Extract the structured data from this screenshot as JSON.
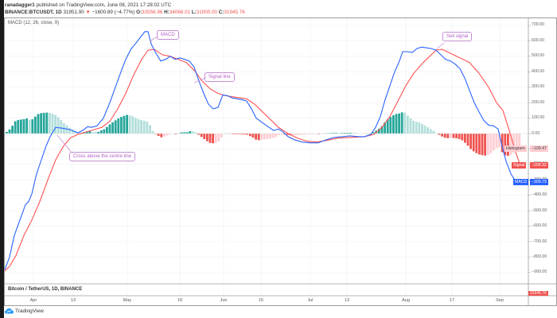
{
  "header": {
    "author": "ranadagger1",
    "published_text": "published on TradingView.com, June 08, 2021 17:28:02 UTC",
    "symbol": "BINANCE:BTCUSDT, 1D",
    "last_price": "31951.90",
    "change_arrow": "▼",
    "change": "−1600.89 (−4.77%)",
    "o_label": "O:",
    "o_value": "33556.96",
    "h_label": "H:",
    "h_value": "34068.01",
    "l_label": "L:",
    "l_value": "31000.00",
    "c_label": "C:",
    "c_value": "31945.76"
  },
  "indicator": {
    "title": "MACD (12, 26, close, 9)"
  },
  "price_pane": {
    "label": "Bitcoin / TetherUS, 1D, BINANCE",
    "price_badge": "31945.76"
  },
  "annotations": {
    "macd": "MACD",
    "signal_line": "Signal line",
    "cross": "Cross above the centre line",
    "sell_signal": "Sell signal"
  },
  "badges": {
    "histogram_label": "Histogram",
    "histogram_value": "−100.47",
    "signal_label": "Signal",
    "signal_value": "−209.32",
    "macd_label": "MACD",
    "macd_value": "−309.79"
  },
  "branding": {
    "logo_text": "TradingView"
  },
  "colors": {
    "macd": "#2962ff",
    "signal": "#ff5252",
    "hist_pos_strong": "#26a69a",
    "hist_pos_weak": "#b2dfdb",
    "hist_neg_strong": "#ef5350",
    "hist_neg_weak": "#ffcdd2",
    "annotation": "#b45fc8"
  },
  "chart_data": {
    "type": "line",
    "title": "MACD (12, 26, close, 9)",
    "xlabel": "",
    "ylabel": "",
    "x_ticks": [
      "Apr",
      "13",
      "May",
      "18",
      "Jun",
      "15",
      "Jul",
      "13",
      "Aug",
      "17",
      "Sep"
    ],
    "y_ticks": [
      "700.00",
      "600.00",
      "500.00",
      "400.00",
      "300.00",
      "200.00",
      "100.00",
      "0.00",
      "-100.00",
      "-200.00",
      "-300.00",
      "-400.00",
      "-500.00",
      "-600.00",
      "-700.00",
      "-800.00",
      "-900.00"
    ],
    "ylim": [
      -950,
      720
    ],
    "grid": true,
    "legend": [
      "MACD",
      "Signal",
      "Histogram"
    ],
    "series": [
      {
        "name": "MACD",
        "color": "#2962ff",
        "points": [
          [
            6,
            -880
          ],
          [
            12,
            -800
          ],
          [
            18,
            -660
          ],
          [
            25,
            -560
          ],
          [
            32,
            -460
          ],
          [
            36,
            -440
          ],
          [
            40,
            -390
          ],
          [
            46,
            -260
          ],
          [
            52,
            -170
          ],
          [
            58,
            -80
          ],
          [
            63,
            -20
          ],
          [
            70,
            40
          ],
          [
            78,
            35
          ],
          [
            88,
            25
          ],
          [
            98,
            5
          ],
          [
            104,
            20
          ],
          [
            110,
            45
          ],
          [
            115,
            40
          ],
          [
            122,
            50
          ],
          [
            130,
            100
          ],
          [
            138,
            200
          ],
          [
            145,
            300
          ],
          [
            152,
            400
          ],
          [
            158,
            480
          ],
          [
            165,
            550
          ],
          [
            170,
            580
          ],
          [
            176,
            620
          ],
          [
            182,
            660
          ],
          [
            186,
            660
          ],
          [
            190,
            580
          ],
          [
            196,
            520
          ],
          [
            202,
            470
          ],
          [
            208,
            480
          ],
          [
            214,
            500
          ],
          [
            220,
            480
          ],
          [
            226,
            490
          ],
          [
            232,
            480
          ],
          [
            238,
            470
          ],
          [
            244,
            430
          ],
          [
            250,
            340
          ],
          [
            256,
            260
          ],
          [
            262,
            190
          ],
          [
            268,
            160
          ],
          [
            274,
            170
          ],
          [
            280,
            250
          ],
          [
            286,
            245
          ],
          [
            292,
            230
          ],
          [
            298,
            225
          ],
          [
            304,
            220
          ],
          [
            310,
            210
          ],
          [
            316,
            160
          ],
          [
            322,
            100
          ],
          [
            330,
            70
          ],
          [
            338,
            40
          ],
          [
            344,
            20
          ],
          [
            350,
            30
          ],
          [
            356,
            10
          ],
          [
            362,
            -20
          ],
          [
            370,
            -40
          ],
          [
            380,
            -55
          ],
          [
            390,
            -60
          ],
          [
            400,
            -60
          ],
          [
            410,
            -40
          ],
          [
            420,
            -25
          ],
          [
            430,
            -20
          ],
          [
            440,
            -15
          ],
          [
            450,
            -20
          ],
          [
            458,
            -20
          ],
          [
            466,
            -5
          ],
          [
            472,
            40
          ],
          [
            478,
            110
          ],
          [
            484,
            220
          ],
          [
            490,
            310
          ],
          [
            496,
            400
          ],
          [
            502,
            470
          ],
          [
            506,
            530
          ],
          [
            512,
            530
          ],
          [
            518,
            525
          ],
          [
            524,
            550
          ],
          [
            530,
            560
          ],
          [
            536,
            555
          ],
          [
            542,
            550
          ],
          [
            548,
            540
          ],
          [
            554,
            510
          ],
          [
            560,
            480
          ],
          [
            566,
            470
          ],
          [
            572,
            450
          ],
          [
            578,
            420
          ],
          [
            584,
            360
          ],
          [
            590,
            280
          ],
          [
            596,
            200
          ],
          [
            602,
            140
          ],
          [
            608,
            85
          ],
          [
            614,
            55
          ],
          [
            620,
            50
          ],
          [
            626,
            30
          ],
          [
            630,
            -60
          ],
          [
            636,
            -180
          ],
          [
            642,
            -260
          ],
          [
            648,
            -310
          ]
        ]
      },
      {
        "name": "Signal",
        "color": "#ff5252",
        "points": [
          [
            6,
            -890
          ],
          [
            12,
            -860
          ],
          [
            20,
            -790
          ],
          [
            30,
            -660
          ],
          [
            40,
            -560
          ],
          [
            50,
            -440
          ],
          [
            60,
            -300
          ],
          [
            70,
            -170
          ],
          [
            80,
            -80
          ],
          [
            88,
            -30
          ],
          [
            98,
            -5
          ],
          [
            108,
            10
          ],
          [
            118,
            25
          ],
          [
            128,
            40
          ],
          [
            138,
            80
          ],
          [
            148,
            160
          ],
          [
            158,
            260
          ],
          [
            168,
            380
          ],
          [
            178,
            480
          ],
          [
            186,
            540
          ],
          [
            194,
            545
          ],
          [
            204,
            510
          ],
          [
            214,
            500
          ],
          [
            224,
            480
          ],
          [
            234,
            460
          ],
          [
            244,
            410
          ],
          [
            254,
            340
          ],
          [
            264,
            290
          ],
          [
            274,
            260
          ],
          [
            284,
            245
          ],
          [
            296,
            235
          ],
          [
            310,
            225
          ],
          [
            320,
            190
          ],
          [
            330,
            140
          ],
          [
            340,
            90
          ],
          [
            350,
            40
          ],
          [
            362,
            0
          ],
          [
            374,
            -30
          ],
          [
            386,
            -50
          ],
          [
            398,
            -55
          ],
          [
            410,
            -45
          ],
          [
            424,
            -30
          ],
          [
            440,
            -25
          ],
          [
            458,
            -20
          ],
          [
            470,
            -5
          ],
          [
            480,
            40
          ],
          [
            490,
            110
          ],
          [
            500,
            210
          ],
          [
            510,
            310
          ],
          [
            520,
            390
          ],
          [
            530,
            450
          ],
          [
            540,
            500
          ],
          [
            548,
            540
          ],
          [
            556,
            545
          ],
          [
            566,
            520
          ],
          [
            578,
            490
          ],
          [
            590,
            460
          ],
          [
            602,
            390
          ],
          [
            614,
            300
          ],
          [
            624,
            200
          ],
          [
            632,
            150
          ],
          [
            640,
            20
          ],
          [
            648,
            -120
          ],
          [
            654,
            -209
          ]
        ]
      },
      {
        "name": "Histogram",
        "type": "bar",
        "note": "positive (teal) in early Apr, mid-Apr to early May, early Jun, late Jul to mid-Aug; negative (red) mid-May to late May, mid-Jun to early Jul, late Aug to Sep; latest -100.47",
        "values_approx": {
          "early_apr_peak": 150,
          "late_apr_peak": 150,
          "may_trough": -150,
          "jun_trough": -80,
          "aug_peak": 250,
          "sep_trough": -200
        }
      }
    ],
    "last_values": {
      "MACD": -309.79,
      "Signal": -209.32,
      "Histogram": -100.47
    }
  }
}
